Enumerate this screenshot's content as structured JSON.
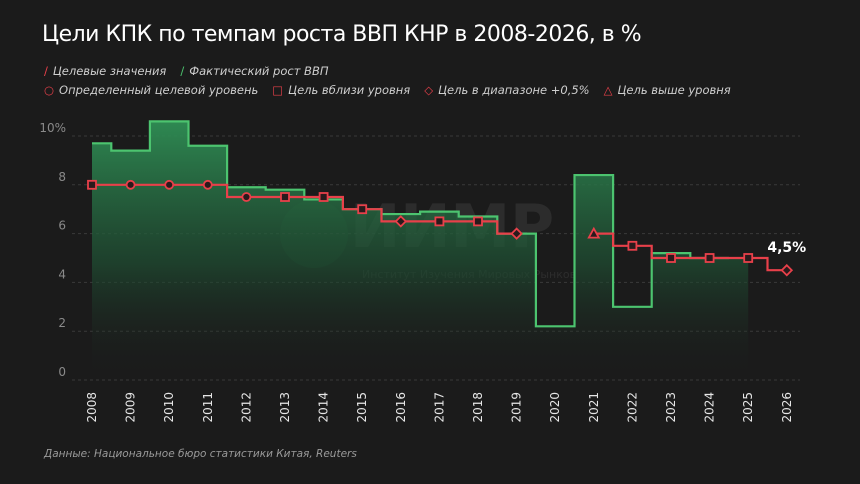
{
  "title": "Цели КПК по темпам роста ВВП КНР в 2008-2026, в %",
  "legend": {
    "target_line": "Целевые значения",
    "actual_line": "Фактический рост ВВП",
    "circle": "Определенный целевой уровень",
    "square": "Цель вблизи уровня",
    "diamond": "Цель в диапазоне +0,5%",
    "triangle": "Цель выше уровня"
  },
  "source": "Данные: Национальное бюро статистики Китая, Reuters",
  "watermark": {
    "logo": "ИИМР",
    "name": "Институт Изучения Мировых Рынков"
  },
  "colors": {
    "background": "#1b1b1b",
    "target": "#e8404a",
    "actual": "#4cc46f"
  },
  "chart_data": {
    "type": "line",
    "title": "Цели КПК по темпам роста ВВП КНР в 2008-2026, в %",
    "step": true,
    "categories": [
      "2008",
      "2009",
      "2010",
      "2011",
      "2012",
      "2013",
      "2014",
      "2015",
      "2016",
      "2017",
      "2018",
      "2019",
      "2020",
      "2021",
      "2022",
      "2023",
      "2024",
      "2025",
      "2026"
    ],
    "ylim": [
      0,
      10
    ],
    "yticks": [
      "0",
      "2",
      "4",
      "6",
      "8",
      "10%"
    ],
    "grid": true,
    "series": [
      {
        "name": "Фактический рост ВВП",
        "values": [
          9.7,
          9.4,
          10.6,
          9.6,
          7.9,
          7.8,
          7.4,
          7.0,
          6.8,
          6.9,
          6.7,
          6.0,
          2.2,
          8.4,
          3.0,
          5.2,
          5.0,
          null,
          null
        ]
      },
      {
        "name": "Целевые значения",
        "values": [
          8,
          8,
          8,
          8,
          7.5,
          7.5,
          7.5,
          7,
          6.5,
          6.5,
          6.5,
          6,
          null,
          6,
          5.5,
          5,
          5,
          5,
          4.5
        ],
        "markers": [
          "square",
          "circle",
          "circle",
          "circle",
          "circle",
          "square",
          "square",
          "square",
          "diamond",
          "square",
          "square",
          "diamond",
          null,
          "triangle",
          "square",
          "square",
          "square",
          "square",
          "diamond"
        ]
      }
    ],
    "annotations": [
      {
        "year": "2026",
        "text": "4,5%"
      }
    ]
  }
}
